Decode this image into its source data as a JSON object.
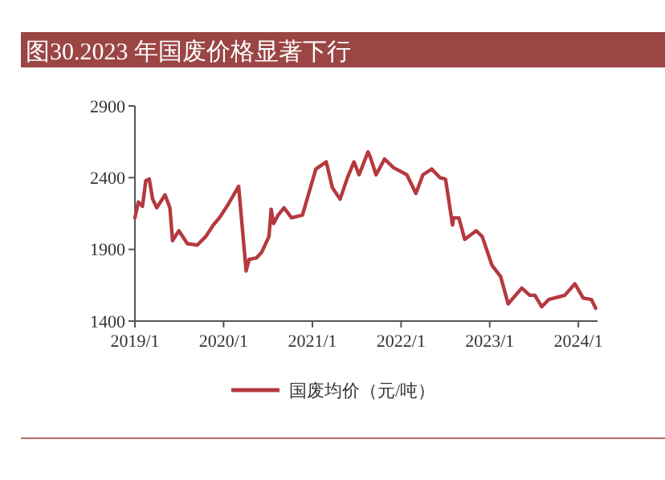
{
  "chart_data": {
    "type": "line",
    "title": "图30.2023 年国废价格显著下行",
    "legend": "bottom",
    "grid": false,
    "xlim": [
      "2019-01-01",
      "2024-03-20"
    ],
    "xticks": [
      {
        "value": "2019-01-01",
        "label": "2019/1"
      },
      {
        "value": "2020-01-01",
        "label": "2020/1"
      },
      {
        "value": "2021-01-01",
        "label": "2021/1"
      },
      {
        "value": "2022-01-01",
        "label": "2022/1"
      },
      {
        "value": "2023-01-01",
        "label": "2023/1"
      },
      {
        "value": "2024-01-01",
        "label": "2024/1"
      }
    ],
    "ylim": [
      1400,
      2900
    ],
    "yticks": [
      1400,
      1900,
      2400,
      2900
    ],
    "series": [
      {
        "name": "国废均价（元/吨）",
        "color": "#b5393f",
        "x": [
          "2019-01-01",
          "2019-01-15",
          "2019-02-01",
          "2019-02-15",
          "2019-03-01",
          "2019-03-15",
          "2019-04-01",
          "2019-05-05",
          "2019-05-25",
          "2019-06-05",
          "2019-07-01",
          "2019-08-05",
          "2019-09-15",
          "2019-10-20",
          "2019-11-20",
          "2019-12-15",
          "2020-01-15",
          "2020-03-03",
          "2020-04-03",
          "2020-04-15",
          "2020-05-15",
          "2020-06-06",
          "2020-07-06",
          "2020-07-15",
          "2020-07-25",
          "2020-08-13",
          "2020-09-06",
          "2020-10-07",
          "2020-11-21",
          "2021-01-15",
          "2021-02-27",
          "2021-03-24",
          "2021-04-25",
          "2021-05-25",
          "2021-06-21",
          "2021-07-12",
          "2021-08-18",
          "2021-08-28",
          "2021-09-20",
          "2021-10-25",
          "2021-12-01",
          "2022-01-25",
          "2022-03-03",
          "2022-04-01",
          "2022-05-07",
          "2022-06-10",
          "2022-07-03",
          "2022-08-01",
          "2022-08-05",
          "2022-08-27",
          "2022-09-20",
          "2022-11-06",
          "2022-12-01",
          "2023-01-10",
          "2023-02-15",
          "2023-03-18",
          "2023-05-13",
          "2023-06-15",
          "2023-07-06",
          "2023-08-03",
          "2023-09-01",
          "2023-11-06",
          "2023-12-18",
          "2024-01-21",
          "2024-02-24",
          "2024-03-12"
        ],
        "values": [
          2120,
          2230,
          2200,
          2380,
          2390,
          2250,
          2190,
          2280,
          2190,
          1960,
          2030,
          1940,
          1930,
          1990,
          2070,
          2120,
          2200,
          2340,
          1750,
          1830,
          1840,
          1880,
          1990,
          2180,
          2080,
          2140,
          2190,
          2120,
          2140,
          2460,
          2510,
          2330,
          2250,
          2400,
          2510,
          2420,
          2580,
          2540,
          2420,
          2530,
          2470,
          2420,
          2290,
          2420,
          2460,
          2400,
          2390,
          2070,
          2120,
          2120,
          1970,
          2030,
          1990,
          1790,
          1710,
          1520,
          1630,
          1580,
          1580,
          1500,
          1550,
          1580,
          1660,
          1560,
          1550,
          1490
        ]
      }
    ]
  }
}
